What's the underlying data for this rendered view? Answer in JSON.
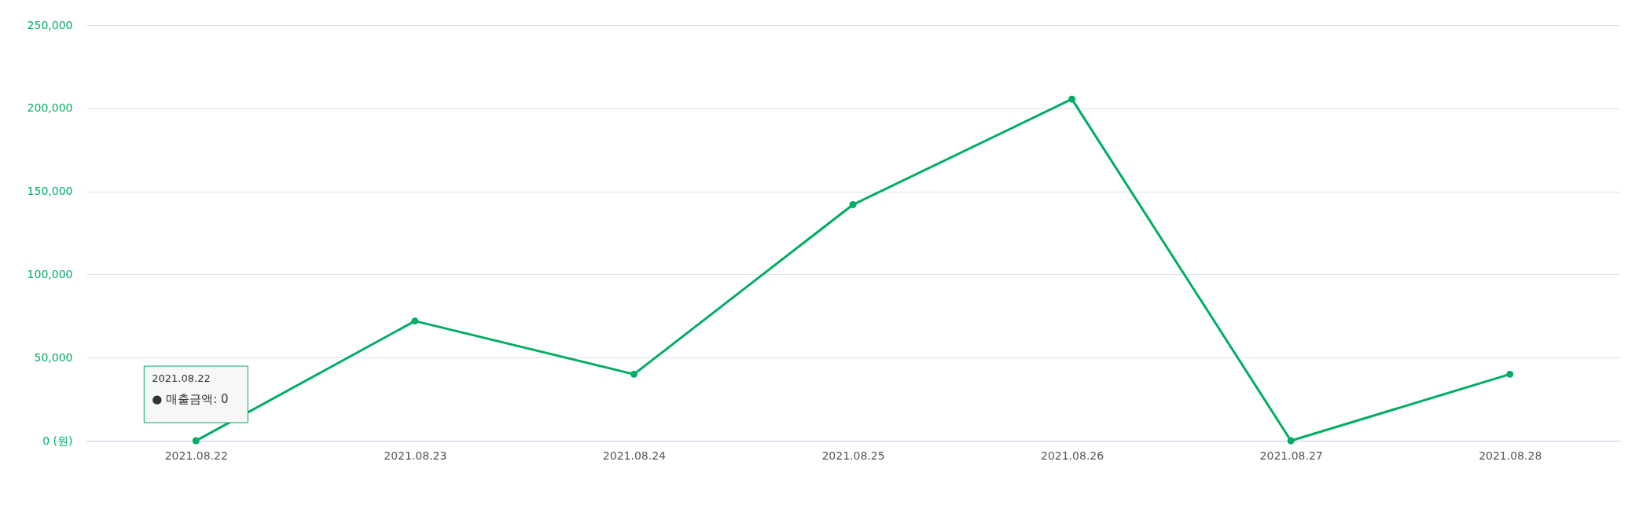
{
  "chart_data": {
    "type": "line",
    "categories": [
      "2021.08.22",
      "2021.08.23",
      "2021.08.24",
      "2021.08.25",
      "2021.08.26",
      "2021.08.27",
      "2021.08.28"
    ],
    "series": [
      {
        "color": "#00ad64",
        "values": [
          0,
          72000,
          40000,
          142000,
          205500,
          0,
          40000
        ]
      }
    ],
    "ylim": [
      0,
      250000
    ],
    "yticks": [
      {
        "value": 0,
        "label": "0 (원)"
      },
      {
        "value": 50000,
        "label": "50,000"
      },
      {
        "value": 100000,
        "label": "100,000"
      },
      {
        "value": 150000,
        "label": "150,000"
      },
      {
        "value": 200000,
        "label": "200,000"
      },
      {
        "value": 250000,
        "label": "250,000"
      }
    ],
    "grid": "y",
    "marker": "circle",
    "line_style": "solid",
    "legend": false,
    "annotations": [
      "2021.08.22",
      "● 매출금액: 0"
    ]
  }
}
